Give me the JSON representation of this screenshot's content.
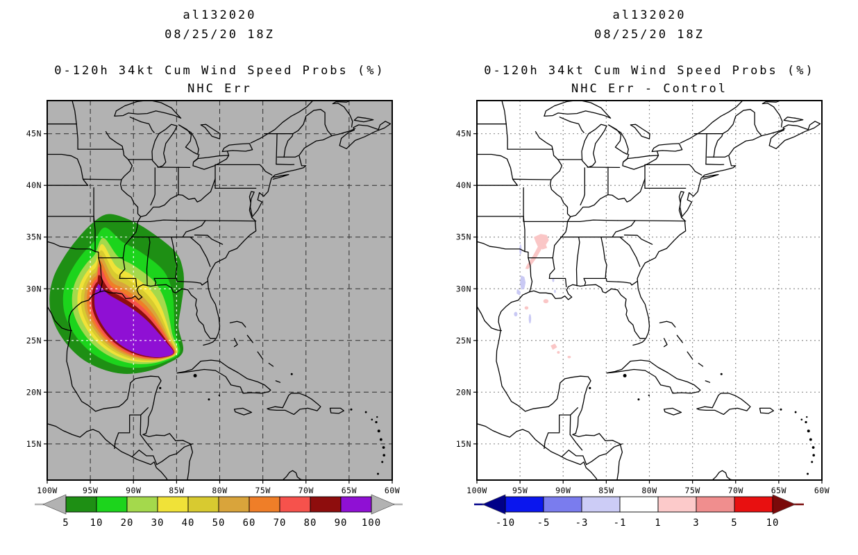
{
  "figure": {
    "panels": [
      {
        "storm_id": "al132020",
        "datetime": "08/25/20 18Z",
        "title": "0-120h 34kt Cum Wind Speed Probs (%)",
        "subtitle": "NHC Err",
        "map_bg": "#b2b2b2",
        "grid_style": "dark-dashed",
        "colorbar": {
          "labels": [
            "5",
            "10",
            "20",
            "30",
            "40",
            "50",
            "60",
            "70",
            "80",
            "90",
            "100"
          ],
          "colors": [
            "#1e8f14",
            "#1cd41c",
            "#a4d94c",
            "#f0e238",
            "#d8ca30",
            "#d9a43b",
            "#ef7e28",
            "#f6524c",
            "#8e0d0d",
            "#8f10d4"
          ],
          "under_color": "#b2b2b2",
          "over_color": "#b2b2b2"
        }
      },
      {
        "storm_id": "al132020",
        "datetime": "08/25/20 18Z",
        "title": "0-120h 34kt Cum Wind Speed Probs (%)",
        "subtitle": "NHC Err - Control",
        "map_bg": "#ffffff",
        "grid_style": "gray-dotted",
        "colorbar": {
          "labels": [
            "-10",
            "-5",
            "-3",
            "-1",
            "1",
            "3",
            "5",
            "10"
          ],
          "colors": [
            "#0a16ee",
            "#7a7cee",
            "#ccccf6",
            "#ffffff",
            "#fccaca",
            "#f08e8e",
            "#e81010"
          ],
          "under_color": "#000088",
          "over_color": "#7a0a0a"
        }
      }
    ],
    "axes": {
      "lat_ticks": [
        {
          "label": "45N",
          "value": 45
        },
        {
          "label": "40N",
          "value": 40
        },
        {
          "label": "35N",
          "value": 35
        },
        {
          "label": "30N",
          "value": 30
        },
        {
          "label": "25N",
          "value": 25
        },
        {
          "label": "20N",
          "value": 20
        },
        {
          "label": "15N",
          "value": 15
        }
      ],
      "lon_ticks": [
        {
          "label": "100W",
          "value": -100
        },
        {
          "label": "95W",
          "value": -95
        },
        {
          "label": "90W",
          "value": -90
        },
        {
          "label": "85W",
          "value": -85
        },
        {
          "label": "80W",
          "value": -80
        },
        {
          "label": "75W",
          "value": -75
        },
        {
          "label": "70W",
          "value": -70
        },
        {
          "label": "65W",
          "value": -65
        },
        {
          "label": "60W",
          "value": -60
        }
      ]
    }
  },
  "chart_data": {
    "type": "heatmap",
    "subtype": "filled-contour-map, two panels",
    "extent": {
      "lon_min": -100,
      "lon_max": -60,
      "lat_min": 11.5,
      "lat_max": 48.2
    },
    "grid": {
      "lat_lines": [
        15,
        20,
        25,
        30,
        35,
        40,
        45
      ],
      "lon_lines": [
        -95,
        -90,
        -85,
        -80,
        -75,
        -70,
        -65
      ]
    },
    "panel_left": {
      "title": "0-120h 34kt Cum Wind Speed Probs (%) - NHC Err",
      "field": "cumulative 34kt wind probability (%)",
      "levels": [
        5,
        10,
        20,
        30,
        40,
        50,
        60,
        70,
        80,
        90,
        100
      ],
      "contour_outer_5pct": [
        [
          -93.0,
          37.2
        ],
        [
          -90.6,
          36.7
        ],
        [
          -88.2,
          35.6
        ],
        [
          -85.2,
          33.6
        ],
        [
          -84.3,
          31.9
        ],
        [
          -84.2,
          30.2
        ],
        [
          -84.5,
          28.3
        ],
        [
          -84.8,
          26.3
        ],
        [
          -84.3,
          23.9
        ],
        [
          -86.3,
          22.7
        ],
        [
          -88.6,
          22.0
        ],
        [
          -91.2,
          21.8
        ],
        [
          -93.8,
          22.3
        ],
        [
          -96.2,
          23.4
        ],
        [
          -98.2,
          25.2
        ],
        [
          -99.4,
          27.2
        ],
        [
          -99.7,
          29.2
        ],
        [
          -99.2,
          31.2
        ],
        [
          -98.0,
          33.1
        ],
        [
          -96.4,
          34.9
        ],
        [
          -94.8,
          36.3
        ]
      ],
      "contour_inner_90pct": [
        [
          -94.0,
          30.4
        ],
        [
          -93.0,
          29.5
        ],
        [
          -91.8,
          28.9
        ],
        [
          -90.6,
          28.3
        ],
        [
          -89.4,
          27.6
        ],
        [
          -88.3,
          26.8
        ],
        [
          -87.2,
          25.8
        ],
        [
          -86.2,
          24.8
        ],
        [
          -85.4,
          23.8
        ],
        [
          -86.8,
          23.4
        ],
        [
          -88.4,
          23.5
        ],
        [
          -90.0,
          23.9
        ],
        [
          -91.5,
          24.6
        ],
        [
          -92.8,
          25.6
        ],
        [
          -93.8,
          26.8
        ],
        [
          -94.4,
          28.0
        ],
        [
          -94.5,
          29.0
        ],
        [
          -94.45,
          29.6
        ],
        [
          -94.35,
          30.0
        ],
        [
          -94.2,
          30.25
        ],
        [
          -94.1,
          30.35
        ]
      ],
      "rings": [
        {
          "level": 5,
          "t": 0.0,
          "tip_lat": 37.2,
          "color": "#1e8f14"
        },
        {
          "level": 10,
          "t": 0.3,
          "tip_lat": 35.9,
          "color": "#1cd41c"
        },
        {
          "level": 20,
          "t": 0.5,
          "tip_lat": 34.9,
          "color": "#a4d94c"
        },
        {
          "level": 30,
          "t": 0.62,
          "tip_lat": 34.3,
          "color": "#f0e238"
        },
        {
          "level": 40,
          "t": 0.7,
          "tip_lat": 33.7,
          "color": "#d8ca30"
        },
        {
          "level": 50,
          "t": 0.77,
          "tip_lat": 33.2,
          "color": "#d9a43b"
        },
        {
          "level": 60,
          "t": 0.83,
          "tip_lat": 32.7,
          "color": "#ef7e28"
        },
        {
          "level": 70,
          "t": 0.885,
          "tip_lat": 32.1,
          "color": "#f6524c"
        },
        {
          "level": 80,
          "t": 0.94,
          "tip_lat": 31.3,
          "color": "#8e0d0d"
        },
        {
          "level": 90,
          "t": 1.0,
          "tip_lat": 30.4,
          "color": "#8f10d4"
        }
      ]
    },
    "panel_right": {
      "title": "0-120h 34kt Cum Wind Speed Probs (%) - NHC Err - Control",
      "field": "probability difference (%), NHC Err minus Control",
      "levels": [
        -10,
        -5,
        -3,
        -1,
        1,
        3,
        5,
        10
      ],
      "patches": [
        {
          "color": "#fac6c6",
          "type": "poly",
          "pts": [
            [
              -93.4,
              35.0
            ],
            [
              -92.6,
              35.3
            ],
            [
              -91.9,
              35.2
            ],
            [
              -91.65,
              34.7
            ],
            [
              -92.0,
              34.25
            ],
            [
              -91.85,
              33.95
            ],
            [
              -92.4,
              33.8
            ],
            [
              -92.95,
              34.1
            ],
            [
              -93.2,
              34.55
            ]
          ]
        },
        {
          "color": "#fac6c6",
          "type": "poly",
          "pts": [
            [
              -92.75,
              34.35
            ],
            [
              -93.5,
              33.2
            ],
            [
              -94.2,
              32.3
            ],
            [
              -94.4,
              31.95
            ],
            [
              -94.05,
              31.9
            ],
            [
              -93.25,
              32.8
            ],
            [
              -92.5,
              33.85
            ],
            [
              -92.45,
              34.2
            ]
          ]
        },
        {
          "color": "#c9c9f4",
          "type": "poly",
          "pts": [
            [
              -94.9,
              31.3
            ],
            [
              -94.5,
              31.15
            ],
            [
              -94.35,
              30.6
            ],
            [
              -94.5,
              30.0
            ],
            [
              -94.85,
              29.9
            ],
            [
              -95.0,
              30.55
            ]
          ]
        },
        {
          "color": "#c9c9f4",
          "type": "poly",
          "pts": [
            [
              -95.35,
              30.0
            ],
            [
              -94.95,
              29.75
            ],
            [
              -95.0,
              29.35
            ],
            [
              -95.4,
              29.55
            ]
          ]
        },
        {
          "color": "#c9c9f4",
          "type": "spot",
          "lon": -93.85,
          "lat": 27.1,
          "rx": 0.14,
          "ry": 0.45
        },
        {
          "color": "#c9c9f4",
          "type": "spot",
          "lon": -95.5,
          "lat": 27.55,
          "rx": 0.2,
          "ry": 0.22
        },
        {
          "color": "#c9c9f4",
          "type": "spot",
          "lon": -94.95,
          "lat": 33.8,
          "rx": 0.13,
          "ry": 0.5
        },
        {
          "color": "#c9c9f4",
          "type": "spot",
          "lon": -91.15,
          "lat": 30.85,
          "rx": 0.12,
          "ry": 0.2
        },
        {
          "color": "#c9c9f4",
          "type": "spot",
          "lon": -90.95,
          "lat": 29.75,
          "rx": 0.1,
          "ry": 0.16
        },
        {
          "color": "#fac6c6",
          "type": "spot",
          "lon": -92.0,
          "lat": 28.8,
          "rx": 0.3,
          "ry": 0.2
        },
        {
          "color": "#fac6c6",
          "type": "spot",
          "lon": -94.25,
          "lat": 28.15,
          "rx": 0.22,
          "ry": 0.16
        },
        {
          "color": "#fac6c6",
          "type": "poly",
          "pts": [
            [
              -91.45,
              24.5
            ],
            [
              -90.95,
              24.7
            ],
            [
              -90.7,
              24.35
            ],
            [
              -91.2,
              24.1
            ]
          ]
        },
        {
          "color": "#fac6c6",
          "type": "spot",
          "lon": -90.55,
          "lat": 23.85,
          "rx": 0.16,
          "ry": 0.13
        },
        {
          "color": "#fac6c6",
          "type": "spot",
          "lon": -89.3,
          "lat": 23.4,
          "rx": 0.2,
          "ry": 0.12
        }
      ]
    }
  }
}
